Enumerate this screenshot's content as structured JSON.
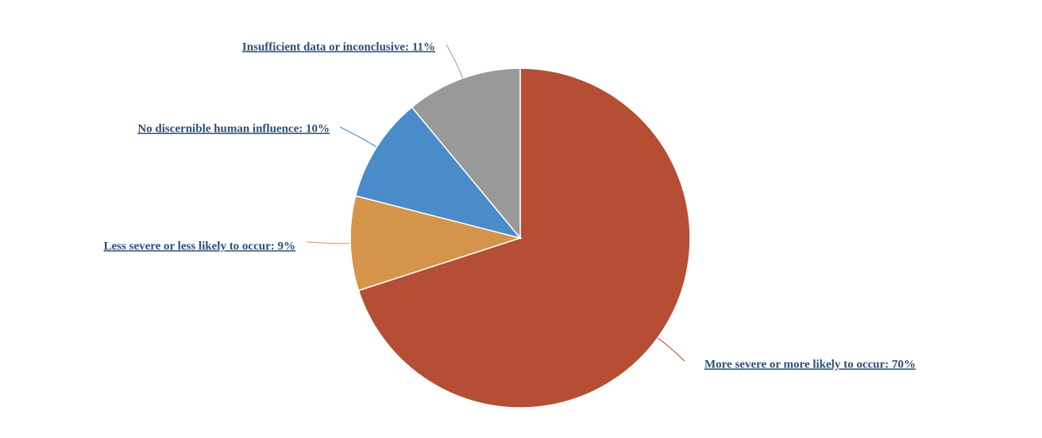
{
  "chart_data": {
    "type": "pie",
    "values": [
      70,
      9,
      10,
      11
    ],
    "value_labels": [
      "More severe or more likely to occur: 70%",
      "Less severe or less likely to occur: 9%",
      "No discernible human influence: 10%",
      "Insufficient data or inconclusive: 11%"
    ],
    "colors": [
      "#b54e35",
      "#d4954a",
      "#4a8bc9",
      "#999999"
    ]
  }
}
